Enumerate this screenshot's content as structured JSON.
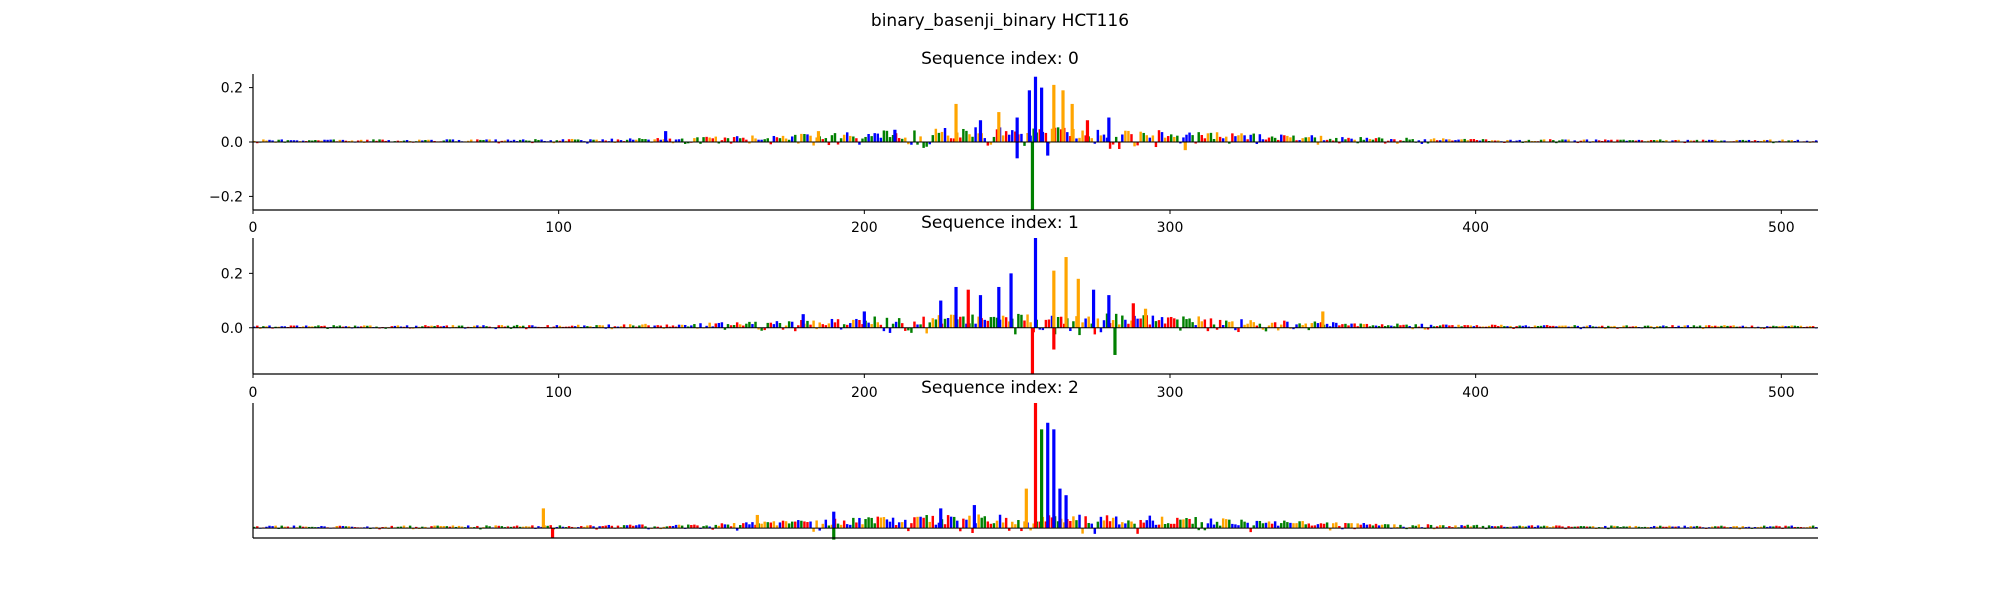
{
  "figure": {
    "title": "binary_basenji_binary HCT116",
    "colors": {
      "A": "#008000",
      "C": "#0000ff",
      "G": "#ffa500",
      "T": "#ff0000",
      "axis": "#000000"
    }
  },
  "chart_data": [
    {
      "type": "sequence-logo",
      "title": "Sequence index: 0",
      "xlim": [
        0,
        512
      ],
      "ylim": [
        -0.25,
        0.25
      ],
      "xticks": [
        "0",
        "100",
        "200",
        "300",
        "400",
        "500"
      ],
      "yticks": [
        {
          "value": 0.2,
          "label": "0.2"
        },
        {
          "value": 0.0,
          "label": "0.0"
        },
        {
          "value": -0.2,
          "label": "−0.2"
        }
      ],
      "show_xticks": true,
      "show_yticks": true,
      "peaks": [
        {
          "x": 230,
          "value": 0.14,
          "base": "G"
        },
        {
          "x": 238,
          "value": 0.08,
          "base": "C"
        },
        {
          "x": 244,
          "value": 0.11,
          "base": "G"
        },
        {
          "x": 250,
          "value": 0.09,
          "base": "C"
        },
        {
          "x": 254,
          "value": 0.19,
          "base": "C"
        },
        {
          "x": 256,
          "value": 0.24,
          "base": "C"
        },
        {
          "x": 258,
          "value": 0.2,
          "base": "C"
        },
        {
          "x": 262,
          "value": 0.21,
          "base": "G"
        },
        {
          "x": 265,
          "value": 0.19,
          "base": "G"
        },
        {
          "x": 268,
          "value": 0.14,
          "base": "G"
        },
        {
          "x": 273,
          "value": 0.08,
          "base": "T"
        },
        {
          "x": 280,
          "value": 0.09,
          "base": "C"
        },
        {
          "x": 255,
          "value": -0.25,
          "base": "A"
        },
        {
          "x": 250,
          "value": -0.06,
          "base": "C"
        },
        {
          "x": 260,
          "value": -0.05,
          "base": "C"
        },
        {
          "x": 135,
          "value": 0.04,
          "base": "C"
        },
        {
          "x": 185,
          "value": 0.04,
          "base": "G"
        },
        {
          "x": 210,
          "value": 0.045,
          "base": "C"
        },
        {
          "x": 305,
          "value": -0.03,
          "base": "G"
        }
      ]
    },
    {
      "type": "sequence-logo",
      "title": "Sequence index: 1",
      "xlim": [
        0,
        512
      ],
      "ylim": [
        -0.17,
        0.33
      ],
      "xticks": [
        "0",
        "100",
        "200",
        "300",
        "400",
        "500"
      ],
      "yticks": [
        {
          "value": 0.2,
          "label": "0.2"
        },
        {
          "value": 0.0,
          "label": "0.0"
        }
      ],
      "show_xticks": true,
      "show_yticks": true,
      "peaks": [
        {
          "x": 225,
          "value": 0.1,
          "base": "C"
        },
        {
          "x": 230,
          "value": 0.15,
          "base": "C"
        },
        {
          "x": 234,
          "value": 0.14,
          "base": "T"
        },
        {
          "x": 238,
          "value": 0.12,
          "base": "C"
        },
        {
          "x": 244,
          "value": 0.15,
          "base": "C"
        },
        {
          "x": 248,
          "value": 0.2,
          "base": "C"
        },
        {
          "x": 256,
          "value": 0.33,
          "base": "C"
        },
        {
          "x": 262,
          "value": 0.21,
          "base": "G"
        },
        {
          "x": 266,
          "value": 0.26,
          "base": "G"
        },
        {
          "x": 270,
          "value": 0.18,
          "base": "G"
        },
        {
          "x": 275,
          "value": 0.14,
          "base": "C"
        },
        {
          "x": 280,
          "value": 0.12,
          "base": "C"
        },
        {
          "x": 288,
          "value": 0.09,
          "base": "T"
        },
        {
          "x": 292,
          "value": 0.07,
          "base": "G"
        },
        {
          "x": 255,
          "value": -0.17,
          "base": "T"
        },
        {
          "x": 262,
          "value": -0.08,
          "base": "T"
        },
        {
          "x": 282,
          "value": -0.1,
          "base": "A"
        },
        {
          "x": 200,
          "value": 0.06,
          "base": "C"
        },
        {
          "x": 180,
          "value": 0.05,
          "base": "C"
        },
        {
          "x": 350,
          "value": 0.06,
          "base": "G"
        }
      ]
    },
    {
      "type": "sequence-logo",
      "title": "Sequence index: 2",
      "xlim": [
        0,
        512
      ],
      "ylim": [
        -0.03,
        0.38
      ],
      "xticks": [],
      "yticks": [],
      "show_xticks": false,
      "show_yticks": false,
      "peaks": [
        {
          "x": 256,
          "value": 0.38,
          "base": "T"
        },
        {
          "x": 258,
          "value": 0.3,
          "base": "A"
        },
        {
          "x": 260,
          "value": 0.32,
          "base": "C"
        },
        {
          "x": 262,
          "value": 0.3,
          "base": "C"
        },
        {
          "x": 264,
          "value": 0.12,
          "base": "C"
        },
        {
          "x": 266,
          "value": 0.1,
          "base": "C"
        },
        {
          "x": 253,
          "value": 0.12,
          "base": "G"
        },
        {
          "x": 236,
          "value": 0.07,
          "base": "C"
        },
        {
          "x": 225,
          "value": 0.06,
          "base": "C"
        },
        {
          "x": 95,
          "value": 0.06,
          "base": "G"
        },
        {
          "x": 165,
          "value": 0.04,
          "base": "G"
        },
        {
          "x": 190,
          "value": 0.05,
          "base": "C"
        },
        {
          "x": 98,
          "value": -0.03,
          "base": "T"
        },
        {
          "x": 190,
          "value": -0.035,
          "base": "A"
        }
      ]
    }
  ]
}
